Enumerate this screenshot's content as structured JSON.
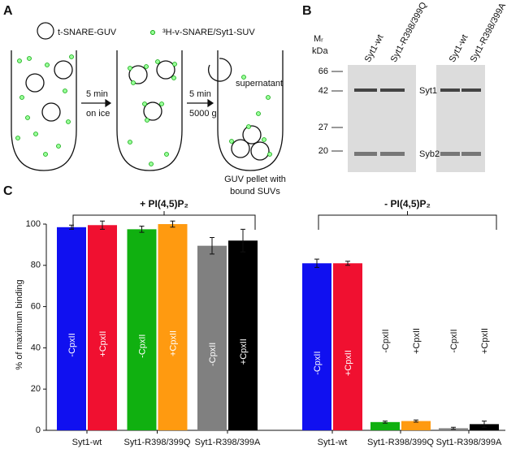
{
  "panel_a": {
    "letter": "A",
    "guv_label": "t-SNARE-GUV",
    "suv_label": "³H-v-SNARE/Syt1-SUV",
    "step1_line1": "5 min",
    "step1_line2": "on ice",
    "step2_line1": "5 min",
    "step2_line2": "5000 g",
    "supernatant": "supernatant",
    "pellet_line1": "GUV pellet with",
    "pellet_line2": "bound SUVs"
  },
  "panel_b": {
    "letter": "B",
    "mr_label": "Mᵣ",
    "unit_label": "kDa",
    "markers": [
      "66",
      "42",
      "27",
      "20"
    ],
    "lanes": [
      "Syt1-wt",
      "Syt1-R398/399Q",
      "Syt1-wt",
      "Syt1-R398/399A"
    ],
    "bands": [
      "Syt1",
      "Syb2"
    ]
  },
  "panel_c": {
    "letter": "C"
  },
  "chart_data": {
    "type": "bar",
    "y_label": "% of maximum binding",
    "conditions": [
      "+ PI(4,5)P₂",
      "- PI(4,5)P₂"
    ],
    "categories": [
      "Syt1-wt",
      "Syt1-R398/399Q",
      "Syt1-R398/399A",
      "Syt1-wt",
      "Syt1-R398/399Q",
      "Syt1-R398/399A"
    ],
    "series": [
      {
        "name": "-CpxII",
        "colors": [
          "#1010f0",
          "#10b010",
          "#808080",
          "#1010f0",
          "#10b010",
          "#808080"
        ],
        "values": [
          98.5,
          97.5,
          89.5,
          81,
          4,
          1
        ],
        "errors": [
          1,
          1.5,
          4,
          2,
          0.5,
          0.5
        ]
      },
      {
        "name": "+CpxII",
        "colors": [
          "#f01030",
          "#ff9a10",
          "#000000",
          "#f01030",
          "#ff9a10",
          "#000000"
        ],
        "values": [
          99.5,
          100,
          92,
          81,
          4.5,
          3
        ],
        "errors": [
          2,
          1.5,
          5.5,
          1,
          0.5,
          1.5
        ]
      }
    ],
    "ylim": [
      0,
      100
    ],
    "yticks": [
      0,
      20,
      40,
      60,
      80,
      100
    ]
  }
}
